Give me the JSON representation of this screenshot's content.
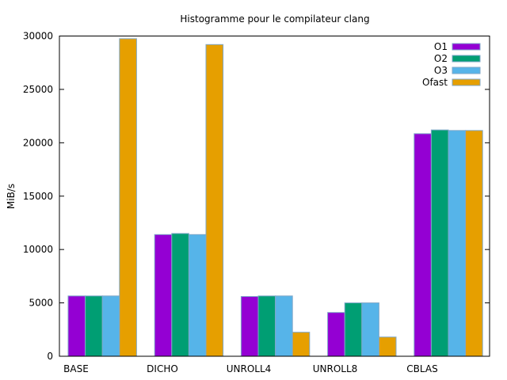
{
  "chart_data": {
    "type": "bar",
    "title": "Histogramme pour le compilateur clang",
    "xlabel": "",
    "ylabel": "MiB/s",
    "ylim": [
      0,
      30000
    ],
    "yticks": [
      0,
      5000,
      10000,
      15000,
      20000,
      25000,
      30000
    ],
    "grid": false,
    "legend_position": "top-right",
    "categories": [
      "BASE",
      "DICHO",
      "UNROLL4",
      "UNROLL8",
      "CBLAS"
    ],
    "series": [
      {
        "name": "O1",
        "color": "#9400d3",
        "values": [
          5650,
          11400,
          5600,
          4100,
          20850
        ]
      },
      {
        "name": "O2",
        "color": "#009e73",
        "values": [
          5650,
          11500,
          5650,
          5000,
          21200
        ]
      },
      {
        "name": "O3",
        "color": "#56b4e9",
        "values": [
          5650,
          11400,
          5650,
          5000,
          21150
        ]
      },
      {
        "name": "Ofast",
        "color": "#e69f00",
        "values": [
          29750,
          29200,
          2250,
          1800,
          21150
        ]
      }
    ]
  }
}
